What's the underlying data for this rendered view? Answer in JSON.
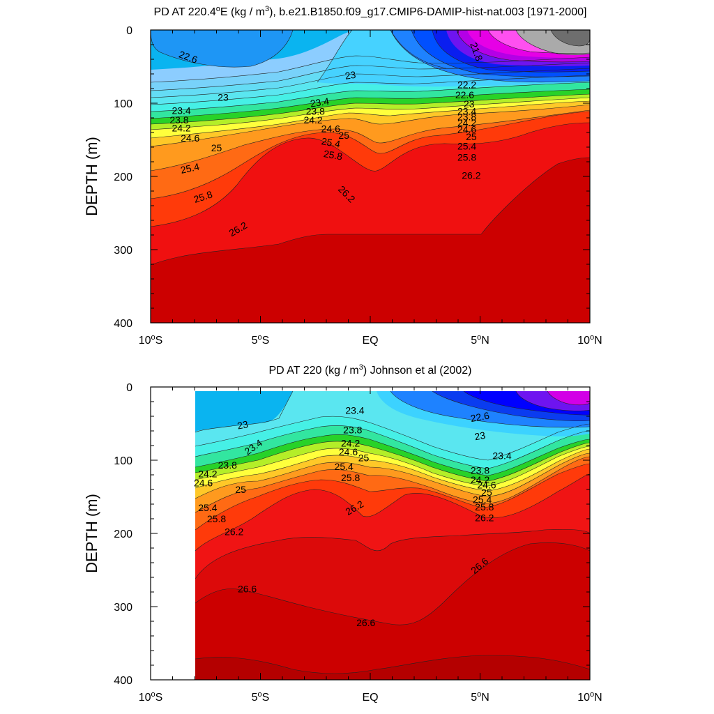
{
  "chart_data": [
    {
      "type": "contour",
      "title": "PD AT 220.4°E (kg / m³), b.e21.B1850.f09_g17.CMIP6-DAMIP-hist-nat.003 [1971-2000]",
      "title_parts": {
        "main_prefix": "PD AT 220.4",
        "degree": "o",
        "main_mid": "E (kg / m",
        "sup": "3",
        "main_suffix": "), b.e21.B1850.f09_g17.CMIP6-DAMIP-hist-nat.003 [1971-2000]"
      },
      "ylabel": "DEPTH (m)",
      "xlabel": "",
      "xlim": [
        -10,
        10
      ],
      "ylim": [
        0,
        400
      ],
      "y_inverted": true,
      "x_ticks": [
        {
          "value": -10,
          "num": "10",
          "deg": "o",
          "hemi": "S"
        },
        {
          "value": -5,
          "num": "5",
          "deg": "o",
          "hemi": "S"
        },
        {
          "value": 0,
          "num": "EQ",
          "deg": "",
          "hemi": ""
        },
        {
          "value": 5,
          "num": "5",
          "deg": "o",
          "hemi": "N"
        },
        {
          "value": 10,
          "num": "10",
          "deg": "o",
          "hemi": "N"
        }
      ],
      "y_ticks": [
        0,
        100,
        200,
        300,
        400
      ],
      "data_x_range": [
        -10,
        10
      ],
      "contour_labels": [
        {
          "text": "22.6",
          "x": -8.3,
          "y": 38,
          "angle": 20
        },
        {
          "text": "23",
          "x": -6.7,
          "y": 93,
          "angle": 0
        },
        {
          "text": "23",
          "x": -0.9,
          "y": 63,
          "angle": -8
        },
        {
          "text": "23.4",
          "x": -8.6,
          "y": 111,
          "angle": 0
        },
        {
          "text": "23.8",
          "x": -8.7,
          "y": 124,
          "angle": 0
        },
        {
          "text": "24.2",
          "x": -8.6,
          "y": 135,
          "angle": 0
        },
        {
          "text": "24.6",
          "x": -8.2,
          "y": 149,
          "angle": 0
        },
        {
          "text": "25",
          "x": -7.0,
          "y": 162,
          "angle": 0
        },
        {
          "text": "25.4",
          "x": -8.2,
          "y": 190,
          "angle": -12
        },
        {
          "text": "25.8",
          "x": -7.6,
          "y": 229,
          "angle": -18
        },
        {
          "text": "26.2",
          "x": -6.0,
          "y": 273,
          "angle": -30
        },
        {
          "text": "23.4",
          "x": -2.3,
          "y": 100,
          "angle": -8
        },
        {
          "text": "23.8",
          "x": -2.5,
          "y": 112,
          "angle": 0
        },
        {
          "text": "24.2",
          "x": -2.6,
          "y": 124,
          "angle": 0
        },
        {
          "text": "24.6",
          "x": -1.8,
          "y": 136,
          "angle": 0
        },
        {
          "text": "25",
          "x": -1.2,
          "y": 145,
          "angle": 0
        },
        {
          "text": "25.4",
          "x": -1.8,
          "y": 155,
          "angle": 10
        },
        {
          "text": "25.8",
          "x": -1.7,
          "y": 172,
          "angle": 10
        },
        {
          "text": "26.2",
          "x": -1.1,
          "y": 225,
          "angle": 45
        },
        {
          "text": "21.8",
          "x": 4.8,
          "y": 30,
          "angle": 70
        },
        {
          "text": "22.2",
          "x": 4.4,
          "y": 76,
          "angle": 0
        },
        {
          "text": "22.6",
          "x": 4.3,
          "y": 90,
          "angle": 0
        },
        {
          "text": "23",
          "x": 4.5,
          "y": 102,
          "angle": 0
        },
        {
          "text": "23.4",
          "x": 4.4,
          "y": 112,
          "angle": 0
        },
        {
          "text": "23.8",
          "x": 4.4,
          "y": 120,
          "angle": 0
        },
        {
          "text": "24.2",
          "x": 4.4,
          "y": 128,
          "angle": 0
        },
        {
          "text": "24.6",
          "x": 4.4,
          "y": 137,
          "angle": 0
        },
        {
          "text": "25",
          "x": 4.6,
          "y": 147,
          "angle": 0
        },
        {
          "text": "25.4",
          "x": 4.4,
          "y": 160,
          "angle": 0
        },
        {
          "text": "25.8",
          "x": 4.4,
          "y": 175,
          "angle": 0
        },
        {
          "text": "26.2",
          "x": 4.6,
          "y": 200,
          "angle": 0
        }
      ]
    },
    {
      "type": "contour",
      "title": "PD AT 220 (kg / m³) Johnson et al (2002)",
      "title_parts": {
        "main_prefix": "PD AT 220 (kg / m",
        "degree": "",
        "main_mid": "",
        "sup": "3",
        "main_suffix": ") Johnson et al (2002)"
      },
      "ylabel": "DEPTH (m)",
      "xlabel": "",
      "xlim": [
        -10,
        10
      ],
      "ylim": [
        0,
        400
      ],
      "y_inverted": true,
      "x_ticks": [
        {
          "value": -10,
          "num": "10",
          "deg": "o",
          "hemi": "S"
        },
        {
          "value": -5,
          "num": "5",
          "deg": "o",
          "hemi": "S"
        },
        {
          "value": 0,
          "num": "EQ",
          "deg": "",
          "hemi": ""
        },
        {
          "value": 5,
          "num": "5",
          "deg": "o",
          "hemi": "N"
        },
        {
          "value": 10,
          "num": "10",
          "deg": "o",
          "hemi": "N"
        }
      ],
      "y_ticks": [
        0,
        100,
        200,
        300,
        400
      ],
      "data_x_range": [
        -8,
        10
      ],
      "contour_labels": [
        {
          "text": "23",
          "x": -5.8,
          "y": 53,
          "angle": -10
        },
        {
          "text": "23.4",
          "x": -5.3,
          "y": 83,
          "angle": -35
        },
        {
          "text": "23.8",
          "x": -6.5,
          "y": 108,
          "angle": 0
        },
        {
          "text": "24.2",
          "x": -7.4,
          "y": 120,
          "angle": 0
        },
        {
          "text": "24.6",
          "x": -7.6,
          "y": 132,
          "angle": 0
        },
        {
          "text": "25",
          "x": -5.9,
          "y": 141,
          "angle": 0
        },
        {
          "text": "25.4",
          "x": -7.4,
          "y": 166,
          "angle": 0
        },
        {
          "text": "25.8",
          "x": -7.0,
          "y": 181,
          "angle": 0
        },
        {
          "text": "26.2",
          "x": -6.2,
          "y": 199,
          "angle": 0
        },
        {
          "text": "26.6",
          "x": -5.6,
          "y": 277,
          "angle": 0
        },
        {
          "text": "23.4",
          "x": -0.7,
          "y": 33,
          "angle": 0
        },
        {
          "text": "23.8",
          "x": -0.8,
          "y": 60,
          "angle": 0
        },
        {
          "text": "24.2",
          "x": -0.9,
          "y": 78,
          "angle": 0
        },
        {
          "text": "24.6",
          "x": -1.0,
          "y": 90,
          "angle": 0
        },
        {
          "text": "25",
          "x": -0.3,
          "y": 98,
          "angle": 0
        },
        {
          "text": "25.4",
          "x": -1.2,
          "y": 110,
          "angle": 0
        },
        {
          "text": "25.8",
          "x": -0.9,
          "y": 125,
          "angle": 0
        },
        {
          "text": "26.2",
          "x": -0.7,
          "y": 166,
          "angle": -30
        },
        {
          "text": "26.6",
          "x": -0.2,
          "y": 323,
          "angle": 0
        },
        {
          "text": "22.6",
          "x": 5.0,
          "y": 42,
          "angle": -10
        },
        {
          "text": "23",
          "x": 5.0,
          "y": 68,
          "angle": -10
        },
        {
          "text": "23.4",
          "x": 6.0,
          "y": 95,
          "angle": 0
        },
        {
          "text": "23.8",
          "x": 5.0,
          "y": 115,
          "angle": 0
        },
        {
          "text": "24.2",
          "x": 5.0,
          "y": 128,
          "angle": 0
        },
        {
          "text": "24.6",
          "x": 5.3,
          "y": 135,
          "angle": 0
        },
        {
          "text": "25",
          "x": 5.3,
          "y": 145,
          "angle": 0
        },
        {
          "text": "25.4",
          "x": 5.1,
          "y": 155,
          "angle": 0
        },
        {
          "text": "25.8",
          "x": 5.2,
          "y": 165,
          "angle": 0
        },
        {
          "text": "26.2",
          "x": 5.2,
          "y": 180,
          "angle": 0
        },
        {
          "text": "26.6",
          "x": 5.0,
          "y": 245,
          "angle": -40
        }
      ]
    }
  ]
}
